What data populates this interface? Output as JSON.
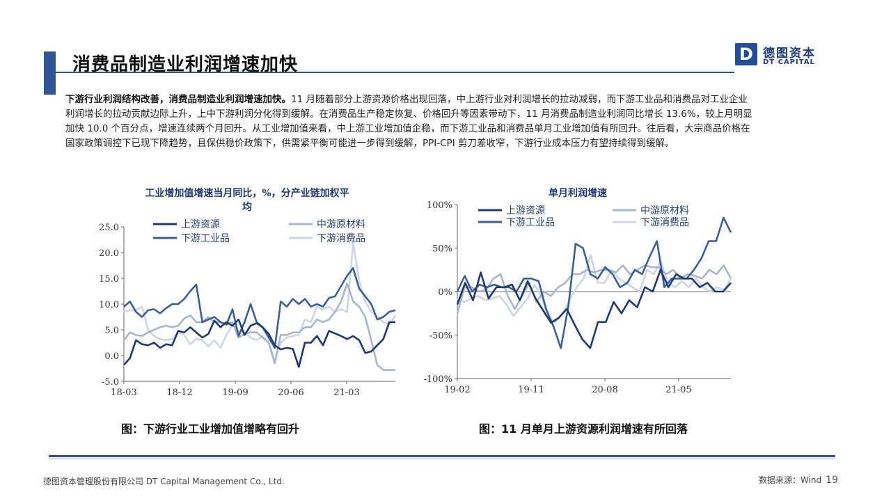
{
  "header": {
    "title": "消费品制造业利润增速加快",
    "logo_mark": "D",
    "logo_cn": "德图资本",
    "logo_en": "DT CAPITAL"
  },
  "body": {
    "lead": "下游行业利润结构改善，消费品制造业利润增速加快。",
    "text": "11 月随着部分上游资源价格出现回落，中上游行业对利润增长的拉动减弱，而下游工业品和消费品对工业企业利润增长的拉动贡献边际上升，上中下游利润分化得到缓解。在消费品生产稳定恢复、价格回升等因素带动下，11 月消费品制造业利润同比增长 13.6%，较上月明显加快 10.0 个百分点，增速连续两个月回升。从工业增加值来看，中上游工业增加值企稳，而下游工业品和消费品单月工业增加值有所回升。往后看，大宗商品价格在国家政策调控下已现下降趋势，且保供稳价政策下，供需紧平衡可能进一步得到缓解，PPI-CPI 剪刀差收窄，下游行业成本压力有望持续得到缓解。"
  },
  "colors": {
    "s1": "#1f3a73",
    "s2": "#a8b6cc",
    "s3": "#3d5f98",
    "s4": "#cdd6e6",
    "accent": "#2f5597"
  },
  "chart_data": [
    {
      "type": "line",
      "title": "工业增加值增速当月同比，%，分产业链加权平均",
      "title_line1": "工业增加值增速当月同比，%，分产业链加权平",
      "title_line2": "均",
      "ylim": [
        -5,
        25
      ],
      "yticks": [
        "25.0",
        "20.0",
        "15.0",
        "10.0",
        "5.0",
        "0.0",
        "-5.0"
      ],
      "xticks": [
        "18-03",
        "18-12",
        "19-09",
        "20-06",
        "21-03"
      ],
      "series": [
        {
          "name": "上游资源",
          "values": [
            -1.8,
            -0.5,
            3.0,
            2.2,
            2.0,
            2.5,
            1.5,
            2.2,
            2.0,
            4.8,
            4.5,
            5.5,
            4.5,
            3.5,
            4.2,
            6.8,
            5.5,
            6.5,
            5.8,
            7.0,
            4.0,
            5.8,
            6.3,
            5.5,
            4.2,
            2.0,
            1.2,
            1.5,
            1.3,
            -2.2,
            2.5,
            2.5,
            3.8,
            2.0,
            4.8,
            4.3,
            3.8,
            3.2,
            3.8,
            3.0,
            0.5,
            0.8,
            2.0,
            3.2,
            6.5,
            6.5
          ]
        },
        {
          "name": "中游原材料",
          "values": [
            3.0,
            4.5,
            4.0,
            3.8,
            4.5,
            5.0,
            5.5,
            5.8,
            5.5,
            5.8,
            7.2,
            7.8,
            6.5,
            6.5,
            7.5,
            6.5,
            6.5,
            6.0,
            6.5,
            3.5,
            4.2,
            4.5,
            4.5,
            3.5,
            2.5,
            -1.5,
            4.0,
            4.0,
            4.5,
            4.5,
            5.5,
            5.5,
            7.0,
            6.5,
            7.0,
            8.5,
            10.5,
            14.0,
            10.5,
            9.5,
            7.5,
            3.0,
            -1.8,
            -2.8,
            -2.8,
            -2.8
          ]
        },
        {
          "name": "下游工业品",
          "values": [
            9.5,
            10.5,
            8.5,
            7.5,
            8.8,
            9.0,
            8.2,
            9.2,
            10.0,
            10.0,
            11.0,
            12.5,
            13.8,
            6.5,
            7.0,
            7.5,
            6.5,
            6.0,
            9.0,
            3.8,
            6.5,
            10.0,
            6.5,
            5.5,
            3.5,
            1.5,
            10.5,
            9.5,
            11.0,
            10.0,
            11.0,
            9.5,
            10.0,
            9.5,
            11.2,
            11.5,
            13.5,
            15.5,
            17.0,
            13.0,
            11.5,
            10.0,
            7.0,
            7.5,
            8.5,
            8.8
          ]
        },
        {
          "name": "下游消费品",
          "values": [
            8.5,
            8.8,
            8.8,
            9.5,
            5.0,
            3.8,
            3.2,
            3.0,
            3.2,
            4.5,
            4.0,
            2.2,
            3.2,
            3.0,
            1.8,
            3.0,
            1.5,
            4.0,
            6.0,
            4.8,
            4.5,
            3.5,
            3.0,
            3.8,
            2.5,
            -1.0,
            2.5,
            3.5,
            3.8,
            4.0,
            7.0,
            6.5,
            9.5,
            9.0,
            9.5,
            8.5,
            9.0,
            8.5,
            22.0,
            14.5,
            10.5,
            8.5,
            7.5,
            6.5,
            6.0,
            7.8
          ]
        }
      ]
    },
    {
      "type": "line",
      "title": "单月利润增速",
      "ylim": [
        -100,
        100
      ],
      "yticks": [
        "100%",
        "50%",
        "0%",
        "-50%",
        "-100%"
      ],
      "xticks": [
        "19-02",
        "19-11",
        "20-08",
        "21-05"
      ],
      "series": [
        {
          "name": "上游资源",
          "values": [
            -15,
            10,
            -10,
            22,
            -8,
            5,
            5,
            8,
            -10,
            12,
            -8,
            -22,
            -36,
            -30,
            -20,
            -38,
            -55,
            -65,
            -35,
            -35,
            -12,
            -25,
            -10,
            -18,
            5,
            0,
            25,
            5,
            20,
            15,
            15,
            5,
            10,
            0,
            0,
            10
          ]
        },
        {
          "name": "中游原材料",
          "values": [
            -25,
            5,
            5,
            0,
            2,
            15,
            20,
            -5,
            -20,
            -5,
            10,
            -12,
            0,
            -5,
            5,
            10,
            20,
            20,
            25,
            22,
            25,
            25,
            22,
            30,
            20,
            25,
            30,
            28,
            28,
            20,
            25,
            15,
            20,
            18,
            15,
            25,
            20,
            30,
            15
          ]
        },
        {
          "name": "下游工业品",
          "values": [
            0,
            18,
            0,
            8,
            5,
            8,
            5,
            5,
            0,
            15,
            15,
            12,
            -20,
            -40,
            -65,
            -18,
            55,
            50,
            20,
            15,
            28,
            20,
            5,
            10,
            25,
            20,
            40,
            58,
            5,
            15,
            15,
            15,
            25,
            38,
            58,
            58,
            85,
            68
          ]
        },
        {
          "name": "下游消费品",
          "values": [
            -8,
            -12,
            -8,
            -5,
            -10,
            -8,
            -5,
            -15,
            -28,
            -18,
            -8,
            8,
            -5,
            -30,
            -35,
            -25,
            -10,
            5,
            15,
            42,
            10,
            10,
            25,
            15,
            10,
            5,
            0,
            25,
            20,
            35,
            10,
            5,
            12,
            5,
            15,
            5,
            0,
            5,
            2,
            15
          ]
        }
      ]
    }
  ],
  "captions": {
    "left": "图：下游行业工业增加值增略有回升",
    "right": "图：11 月单月上游资源利润增速有所回落"
  },
  "footer": {
    "company": "德图资本管理股份有限公司  DT Capital Management  Co., Ltd.",
    "source": "数据来源：Wind",
    "page": "19"
  }
}
